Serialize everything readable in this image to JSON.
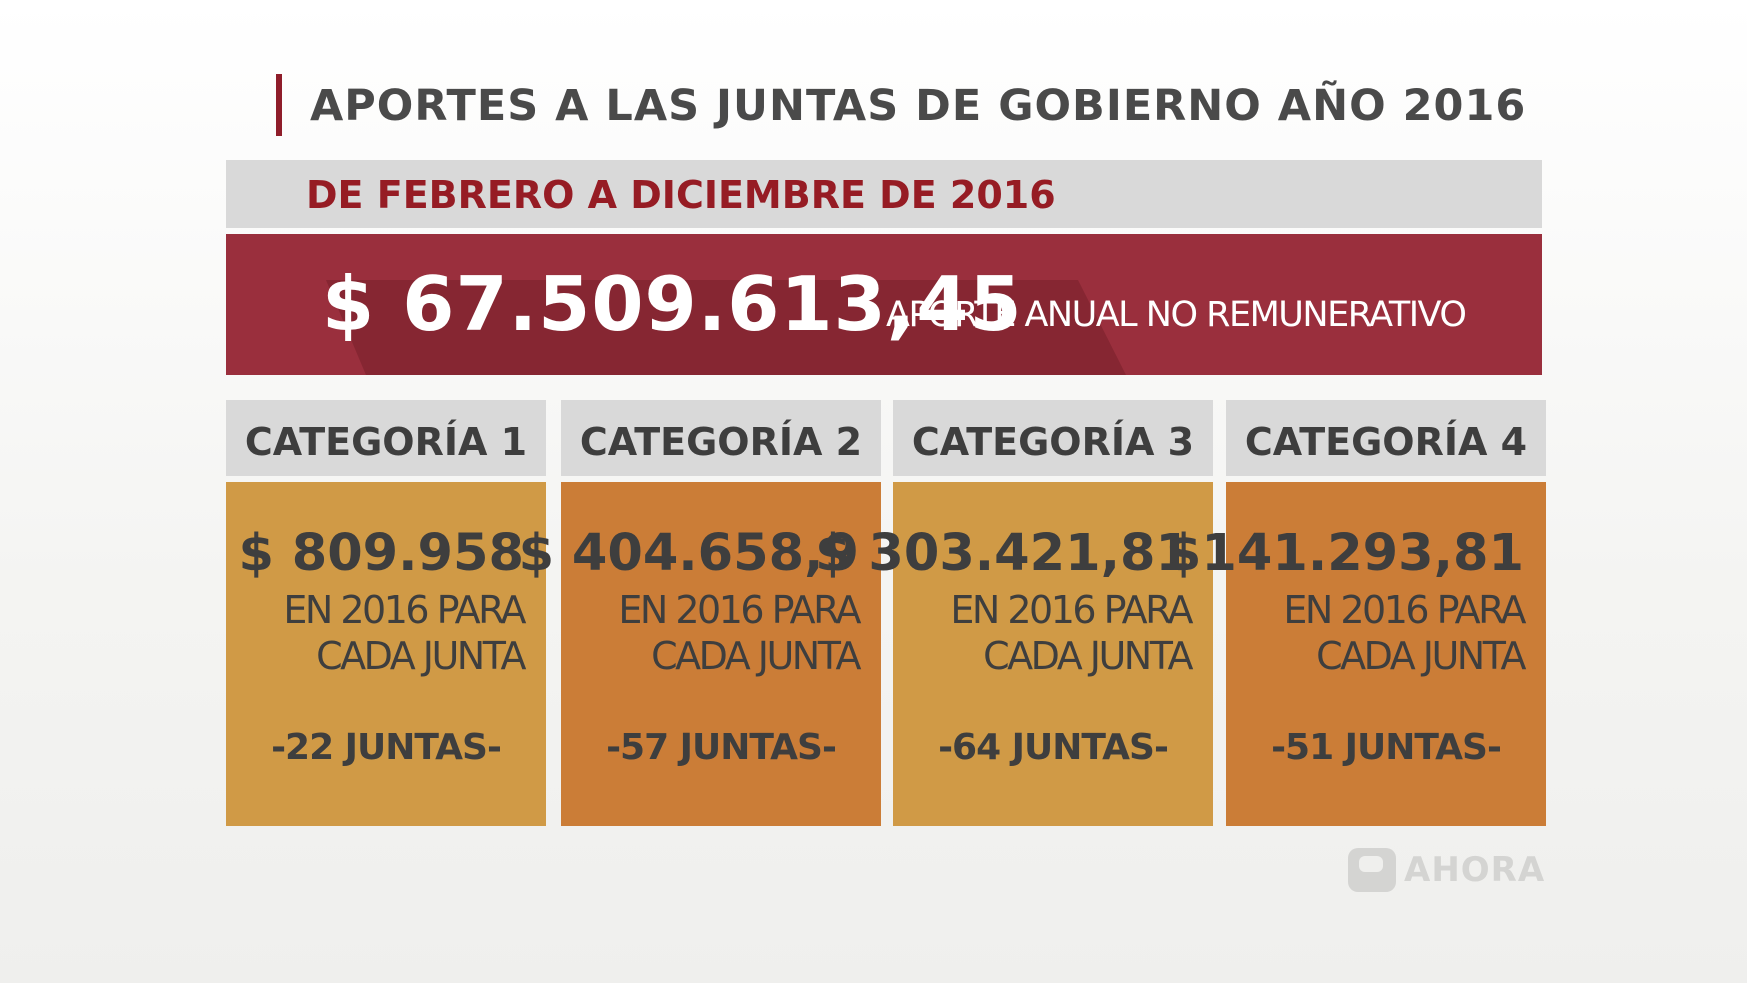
{
  "header": {
    "title": "APORTES A LAS JUNTAS DE GOBIERNO AÑO 2016",
    "subtitle": "DE FEBRERO A DICIEMBRE DE 2016",
    "accent_color": "#8f1d2a"
  },
  "total": {
    "amount": "$ 67.509.613,45",
    "label": "APORTE ANUAL NO REMUNERATIVO",
    "background_color": "#9a2f3d"
  },
  "categories": [
    {
      "header": "CATEGORÍA 1",
      "amount": "$ 809.958",
      "line1": "EN 2016 PARA",
      "line2": "CADA JUNTA",
      "count": "-22 JUNTAS-",
      "color": "#d09a46"
    },
    {
      "header": "CATEGORÍA 2",
      "amount": "$ 404.658,9",
      "line1": "EN 2016 PARA",
      "line2": "CADA JUNTA",
      "count": "-57 JUNTAS-",
      "color": "#cb7d37"
    },
    {
      "header": "CATEGORÍA 3",
      "amount": "$ 303.421,81",
      "line1": "EN 2016 PARA",
      "line2": "CADA JUNTA",
      "count": "-64 JUNTAS-",
      "color": "#d09a46"
    },
    {
      "header": "CATEGORÍA 4",
      "amount": "$141.293,81",
      "line1": "EN 2016 PARA",
      "line2": "CADA JUNTA",
      "count": "-51 JUNTAS-",
      "color": "#cb7d37"
    }
  ],
  "watermark": {
    "icon": "nine-logo-icon",
    "text": "AHORA"
  }
}
